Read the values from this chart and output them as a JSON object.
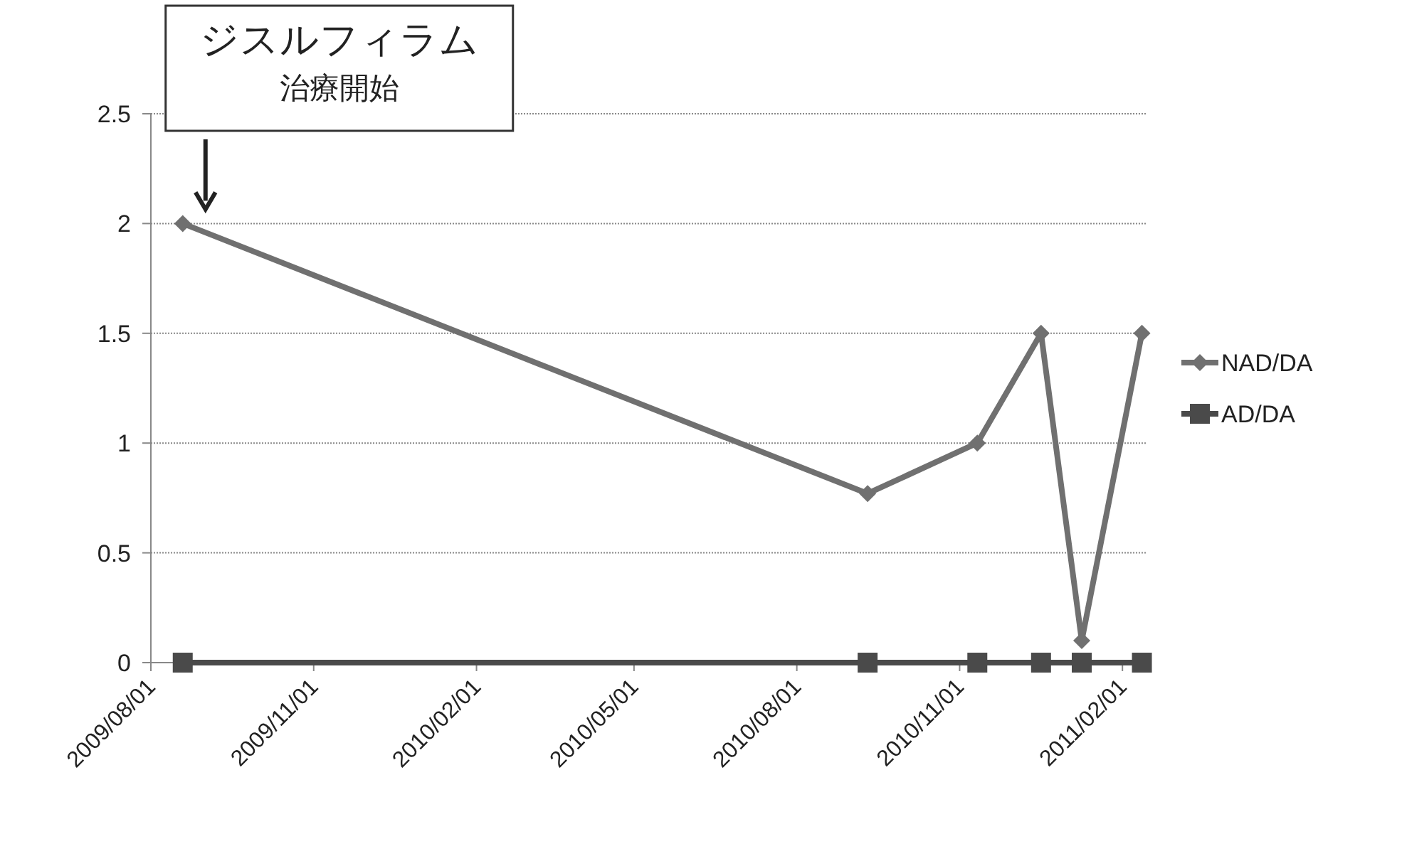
{
  "chart_data": {
    "type": "line",
    "x": [
      "2009-08-19",
      "2010-09-10",
      "2010-11-11",
      "2010-12-17",
      "2011-01-09",
      "2011-02-12"
    ],
    "series": [
      {
        "name": "NAD/DA",
        "color": "#707070",
        "marker": "diamond",
        "values": [
          2,
          0.77,
          1.0,
          1.5,
          0.1,
          1.5
        ]
      },
      {
        "name": "AD/DA",
        "color": "#4a4a4a",
        "marker": "square",
        "values": [
          0,
          0,
          0,
          0,
          0,
          0
        ]
      }
    ],
    "xlim": [
      "2009-08-01",
      "2011-02-15"
    ],
    "xticks": [
      {
        "value": "2009-08-01",
        "label": "2009/08/01"
      },
      {
        "value": "2009-11-01",
        "label": "2009/11/01"
      },
      {
        "value": "2010-02-01",
        "label": "2010/02/01"
      },
      {
        "value": "2010-05-01",
        "label": "2010/05/01"
      },
      {
        "value": "2010-08-01",
        "label": "2010/08/01"
      },
      {
        "value": "2010-11-01",
        "label": "2010/11/01"
      },
      {
        "value": "2011-02-01",
        "label": "2011/02/01"
      }
    ],
    "ylim": [
      0,
      2.5
    ],
    "yticks": [
      0,
      0.5,
      1,
      1.5,
      2,
      2.5
    ],
    "grid": "y",
    "legend": "right",
    "annotations": [
      "ジスルフィラム",
      "治療開始"
    ]
  }
}
